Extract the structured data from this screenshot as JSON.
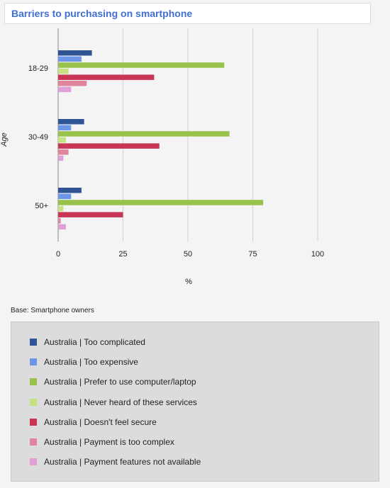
{
  "header": {
    "title": "Barriers to purchasing on smartphone"
  },
  "base_note": "Base: Smartphone owners",
  "chart_data": {
    "type": "bar",
    "orientation": "horizontal",
    "title": "Barriers to purchasing on smartphone",
    "xlabel": "%",
    "ylabel": "Age",
    "xlim": [
      0,
      100
    ],
    "xticks": [
      0,
      25,
      50,
      75,
      100
    ],
    "grid": true,
    "legend_position": "bottom",
    "categories": [
      "18-29",
      "30-49",
      "50+"
    ],
    "series": [
      {
        "name": "Australia | Too complicated",
        "color": "#2f5597",
        "values": [
          13,
          10,
          9
        ]
      },
      {
        "name": "Australia | Too expensive",
        "color": "#6d95e8",
        "values": [
          9,
          5,
          5
        ]
      },
      {
        "name": "Australia | Prefer to use computer/laptop",
        "color": "#99c24a",
        "values": [
          64,
          66,
          79
        ]
      },
      {
        "name": "Australia | Never heard of these services",
        "color": "#c6e283",
        "values": [
          4,
          3,
          2
        ]
      },
      {
        "name": "Australia | Doesn't feel secure",
        "color": "#c93554",
        "values": [
          37,
          39,
          25
        ]
      },
      {
        "name": "Australia | Payment is too complex",
        "color": "#e0869c",
        "values": [
          11,
          4,
          1
        ]
      },
      {
        "name": "Australia | Payment features not available",
        "color": "#dfa0d6",
        "values": [
          5,
          2,
          3
        ]
      }
    ]
  }
}
